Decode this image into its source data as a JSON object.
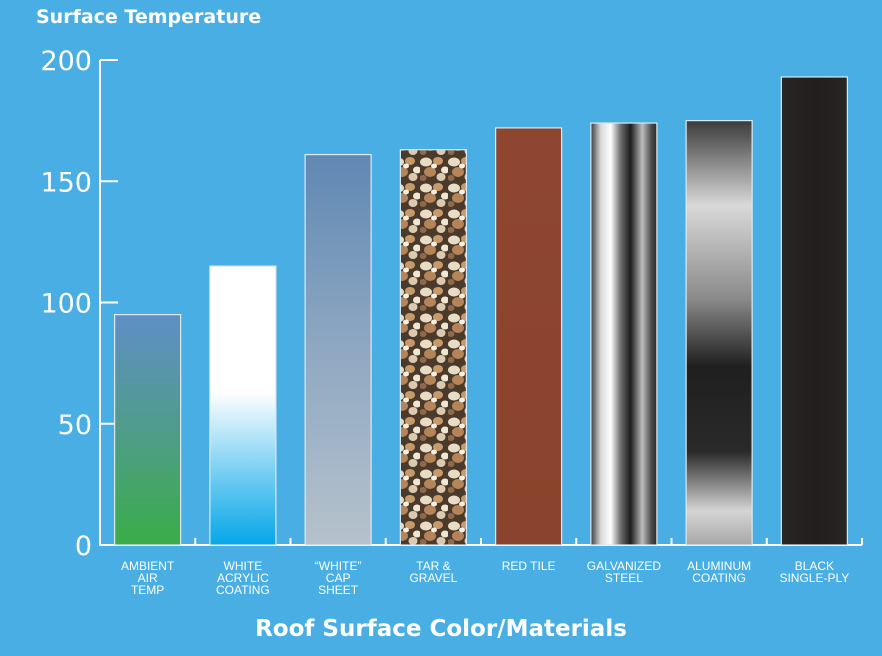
{
  "chart_data": {
    "type": "bar",
    "title": "Surface Temperature",
    "xlabel": "Roof Surface Color/Materials",
    "ylabel": "",
    "ylim": [
      0,
      200
    ],
    "yticks": [
      0,
      50,
      100,
      150,
      200
    ],
    "categories": [
      "AMBIENT AIR TEMP",
      "WHITE ACRYLIC COATING",
      "“WHITE” CAP SHEET",
      "TAR & GRAVEL",
      "RED TILE",
      "GALVANIZED STEEL",
      "ALUMINUM COATING",
      "BLACK SINGLE-PLY"
    ],
    "category_lines": [
      [
        "AMBIENT",
        "AIR",
        "TEMP"
      ],
      [
        "WHITE",
        "ACRYLIC",
        "COATING"
      ],
      [
        "“WHITE”",
        "CAP",
        "SHEET"
      ],
      [
        "TAR &",
        "GRAVEL"
      ],
      [
        "RED TILE"
      ],
      [
        "GALVANIZED",
        "STEEL"
      ],
      [
        "ALUMINUM",
        "COATING"
      ],
      [
        "BLACK",
        "SINGLE-PLY"
      ]
    ],
    "values": [
      95,
      115,
      161,
      163,
      172,
      174,
      175,
      193
    ],
    "grid": false,
    "legend": "none"
  },
  "colors": {
    "background": "#48aee3",
    "axis": "#ffffff",
    "text": "#ffffff"
  }
}
